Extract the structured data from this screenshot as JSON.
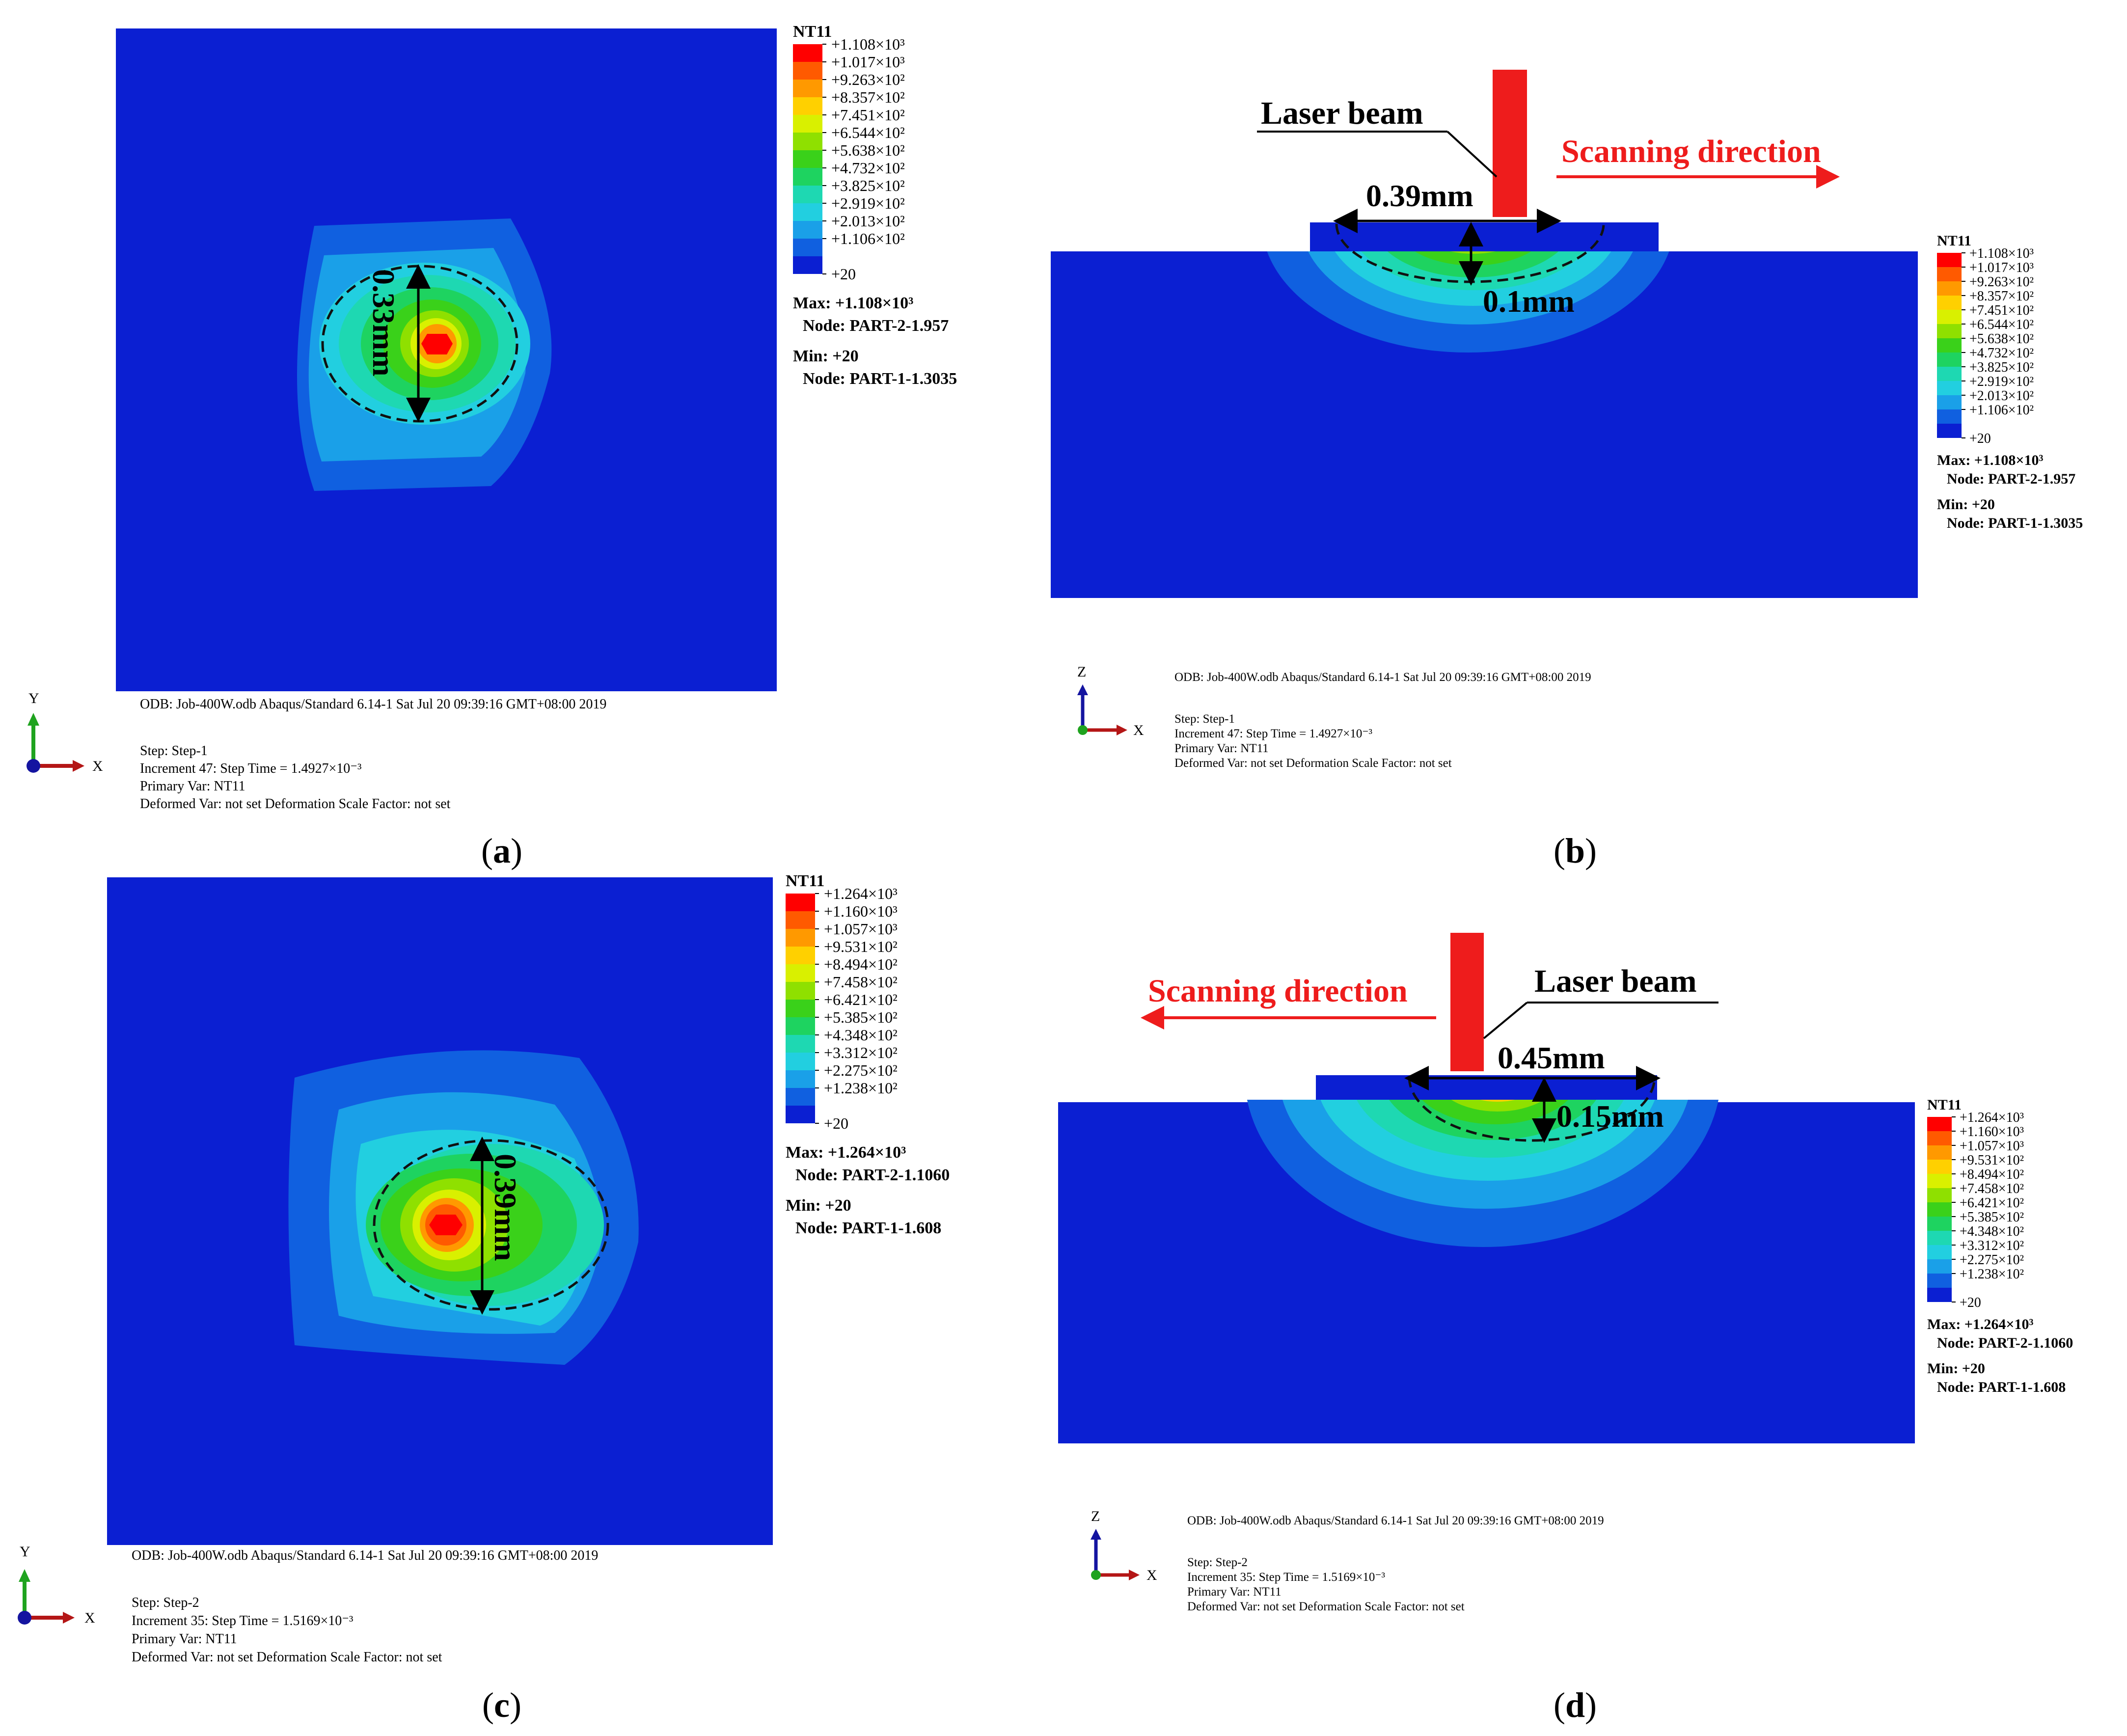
{
  "colors": {
    "background_blue": "#0b1fd2",
    "laser_red": "#ee1c1c",
    "legend_scale": [
      "#ff0000",
      "#ff5a00",
      "#ff9900",
      "#ffd000",
      "#d9f000",
      "#8fe000",
      "#3ad11a",
      "#1ed360",
      "#1ed8b2",
      "#22cfe0",
      "#1aa0e8",
      "#1060e0",
      "#0b1fd2"
    ]
  },
  "panels": {
    "a": {
      "sub_label": "a",
      "legend": {
        "title": "NT11",
        "ticks": [
          "+1.108×10³",
          "+1.017×10³",
          "+9.263×10²",
          "+8.357×10²",
          "+7.451×10²",
          "+6.544×10²",
          "+5.638×10²",
          "+4.732×10²",
          "+3.825×10²",
          "+2.919×10²",
          "+2.013×10²",
          "+1.106×10²",
          "+20"
        ],
        "max_line": "Max: +1.108×10³",
        "max_node": "Node: PART-2-1.957",
        "min_line": "Min: +20",
        "min_node": "Node: PART-1-1.3035"
      },
      "dimension": "0.33mm",
      "axis_vertical": "Y",
      "axis_horizontal": "X",
      "odb_line": "ODB: Job-400W.odb    Abaqus/Standard 6.14-1    Sat Jul 20 09:39:16 GMT+08:00 2019",
      "step_line": "Step: Step-1",
      "increment_line": "Increment      47: Step Time =    1.4927×10⁻³",
      "primary_var_line": "Primary Var: NT11",
      "deformed_line": "Deformed Var: not set   Deformation Scale Factor: not set"
    },
    "b": {
      "sub_label": "b",
      "legend": {
        "title": "NT11",
        "ticks": [
          "+1.108×10³",
          "+1.017×10³",
          "+9.263×10²",
          "+8.357×10²",
          "+7.451×10²",
          "+6.544×10²",
          "+5.638×10²",
          "+4.732×10²",
          "+3.825×10²",
          "+2.919×10²",
          "+2.013×10²",
          "+1.106×10²",
          "+20"
        ],
        "max_line": "Max: +1.108×10³",
        "max_node": "Node: PART-2-1.957",
        "min_line": "Min: +20",
        "min_node": "Node: PART-1-1.3035"
      },
      "laser_label": "Laser beam",
      "scan_label": "Scanning direction",
      "width_dim": "0.39mm",
      "depth_dim": "0.1mm",
      "axis_vertical": "Z",
      "axis_horizontal": "X",
      "odb_line": "ODB: Job-400W.odb    Abaqus/Standard 6.14-1    Sat Jul 20 09:39:16 GMT+08:00 2019",
      "step_line": "Step: Step-1",
      "increment_line": "Increment      47: Step Time =    1.4927×10⁻³",
      "primary_var_line": "Primary Var: NT11",
      "deformed_line": "Deformed Var: not set   Deformation Scale Factor: not set"
    },
    "c": {
      "sub_label": "c",
      "legend": {
        "title": "NT11",
        "ticks": [
          "+1.264×10³",
          "+1.160×10³",
          "+1.057×10³",
          "+9.531×10²",
          "+8.494×10²",
          "+7.458×10²",
          "+6.421×10²",
          "+5.385×10²",
          "+4.348×10²",
          "+3.312×10²",
          "+2.275×10²",
          "+1.238×10²",
          "+20"
        ],
        "max_line": "Max: +1.264×10³",
        "max_node": "Node: PART-2-1.1060",
        "min_line": "Min: +20",
        "min_node": "Node: PART-1-1.608"
      },
      "dimension": "0.39mm",
      "axis_vertical": "Y",
      "axis_horizontal": "X",
      "odb_line": "ODB: Job-400W.odb    Abaqus/Standard 6.14-1    Sat Jul 20 09:39:16 GMT+08:00 2019",
      "step_line": "Step: Step-2",
      "increment_line": "Increment      35: Step Time =    1.5169×10⁻³",
      "primary_var_line": "Primary Var: NT11",
      "deformed_line": "Deformed Var: not set   Deformation Scale Factor: not set"
    },
    "d": {
      "sub_label": "d",
      "legend": {
        "title": "NT11",
        "ticks": [
          "+1.264×10³",
          "+1.160×10³",
          "+1.057×10³",
          "+9.531×10²",
          "+8.494×10²",
          "+7.458×10²",
          "+6.421×10²",
          "+5.385×10²",
          "+4.348×10²",
          "+3.312×10²",
          "+2.275×10²",
          "+1.238×10²",
          "+20"
        ],
        "max_line": "Max: +1.264×10³",
        "max_node": "Node: PART-2-1.1060",
        "min_line": "Min: +20",
        "min_node": "Node: PART-1-1.608"
      },
      "laser_label": "Laser beam",
      "scan_label": "Scanning direction",
      "width_dim": "0.45mm",
      "depth_dim": "0.15mm",
      "axis_vertical": "Z",
      "axis_horizontal": "X",
      "odb_line": "ODB: Job-400W.odb    Abaqus/Standard 6.14-1    Sat Jul 20 09:39:16 GMT+08:00 2019",
      "step_line": "Step: Step-2",
      "increment_line": "Increment      35: Step Time =    1.5169×10⁻³",
      "primary_var_line": "Primary Var: NT11",
      "deformed_line": "Deformed Var: not set   Deformation Scale Factor: not set"
    }
  }
}
